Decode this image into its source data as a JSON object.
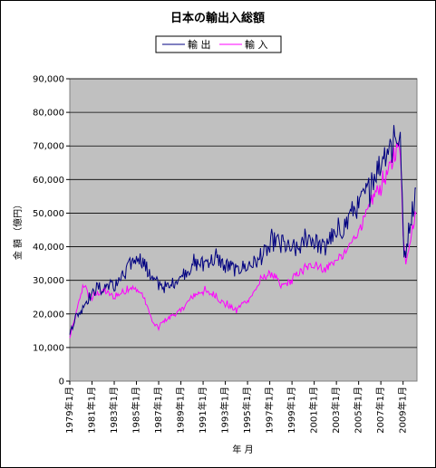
{
  "chart_data": {
    "type": "line",
    "title": "日本の輸出入総額",
    "xlabel": "年 月",
    "ylabel": "金 額 （億円）",
    "ylim": [
      0,
      90000
    ],
    "yticks": [
      "0",
      "10,000",
      "20,000",
      "30,000",
      "40,000",
      "50,000",
      "60,000",
      "70,000",
      "80,000",
      "90,000"
    ],
    "xticks": [
      "1979年1月",
      "1981年1月",
      "1983年1月",
      "1985年1月",
      "1987年1月",
      "1989年1月",
      "1991年1月",
      "1993年1月",
      "1995年1月",
      "1997年1月",
      "1999年1月",
      "2001年1月",
      "2003年1月",
      "2005年1月",
      "2007年1月",
      "2009年1月"
    ],
    "x_start": "1979年1月",
    "x_end": "2010年3月",
    "grid": "horizontal",
    "legend_position": "top-center",
    "plot_background": "#c0c0c0",
    "series": [
      {
        "name": "輸 出",
        "color": "#000080",
        "anchors": [
          [
            1979.0,
            14000
          ],
          [
            1979.5,
            19000
          ],
          [
            1980.0,
            21000
          ],
          [
            1980.5,
            24000
          ],
          [
            1981.0,
            26000
          ],
          [
            1981.5,
            28000
          ],
          [
            1982.0,
            27000
          ],
          [
            1982.5,
            29000
          ],
          [
            1983.0,
            28000
          ],
          [
            1983.5,
            30000
          ],
          [
            1984.0,
            32000
          ],
          [
            1984.5,
            35000
          ],
          [
            1985.0,
            37000
          ],
          [
            1985.5,
            36000
          ],
          [
            1986.0,
            33000
          ],
          [
            1986.5,
            30000
          ],
          [
            1987.0,
            29000
          ],
          [
            1987.5,
            28000
          ],
          [
            1988.0,
            28000
          ],
          [
            1988.5,
            30000
          ],
          [
            1989.0,
            31000
          ],
          [
            1989.5,
            33000
          ],
          [
            1990.0,
            34000
          ],
          [
            1990.5,
            35000
          ],
          [
            1991.0,
            35000
          ],
          [
            1991.5,
            36000
          ],
          [
            1992.0,
            36000
          ],
          [
            1992.5,
            36000
          ],
          [
            1993.0,
            34000
          ],
          [
            1993.5,
            34000
          ],
          [
            1994.0,
            33000
          ],
          [
            1994.5,
            34000
          ],
          [
            1995.0,
            34000
          ],
          [
            1995.5,
            35000
          ],
          [
            1996.0,
            36000
          ],
          [
            1996.5,
            38000
          ],
          [
            1997.0,
            40000
          ],
          [
            1997.5,
            42000
          ],
          [
            1998.0,
            41000
          ],
          [
            1998.5,
            40000
          ],
          [
            1999.0,
            39000
          ],
          [
            1999.5,
            39000
          ],
          [
            2000.0,
            41000
          ],
          [
            2000.5,
            43000
          ],
          [
            2001.0,
            42000
          ],
          [
            2001.5,
            40000
          ],
          [
            2002.0,
            40000
          ],
          [
            2002.5,
            43000
          ],
          [
            2003.0,
            43000
          ],
          [
            2003.5,
            45000
          ],
          [
            2004.0,
            48000
          ],
          [
            2004.5,
            51000
          ],
          [
            2005.0,
            52000
          ],
          [
            2005.5,
            55000
          ],
          [
            2006.0,
            58000
          ],
          [
            2006.5,
            62000
          ],
          [
            2007.0,
            65000
          ],
          [
            2007.5,
            69000
          ],
          [
            2008.0,
            71000
          ],
          [
            2008.5,
            73000
          ],
          [
            2008.8,
            70000
          ],
          [
            2009.0,
            45000
          ],
          [
            2009.1,
            35000
          ],
          [
            2009.3,
            40000
          ],
          [
            2009.6,
            47000
          ],
          [
            2009.9,
            52000
          ],
          [
            2010.17,
            58000
          ]
        ]
      },
      {
        "name": "輸 入",
        "color": "#ff00ff",
        "anchors": [
          [
            1979.0,
            13000
          ],
          [
            1979.5,
            19000
          ],
          [
            1980.0,
            26000
          ],
          [
            1980.3,
            29000
          ],
          [
            1980.6,
            26000
          ],
          [
            1981.0,
            25000
          ],
          [
            1981.5,
            26000
          ],
          [
            1982.0,
            27000
          ],
          [
            1982.5,
            26000
          ],
          [
            1983.0,
            25000
          ],
          [
            1983.5,
            26000
          ],
          [
            1984.0,
            27000
          ],
          [
            1984.5,
            28000
          ],
          [
            1985.0,
            27000
          ],
          [
            1985.5,
            26000
          ],
          [
            1986.0,
            22000
          ],
          [
            1986.5,
            17000
          ],
          [
            1987.0,
            16000
          ],
          [
            1987.5,
            18000
          ],
          [
            1988.0,
            19000
          ],
          [
            1988.5,
            20000
          ],
          [
            1989.0,
            21000
          ],
          [
            1989.5,
            23000
          ],
          [
            1990.0,
            25000
          ],
          [
            1990.5,
            26000
          ],
          [
            1991.0,
            27000
          ],
          [
            1991.5,
            26000
          ],
          [
            1992.0,
            26000
          ],
          [
            1992.5,
            24000
          ],
          [
            1993.0,
            23000
          ],
          [
            1993.5,
            22000
          ],
          [
            1994.0,
            21000
          ],
          [
            1994.5,
            23000
          ],
          [
            1995.0,
            24000
          ],
          [
            1995.5,
            26000
          ],
          [
            1996.0,
            29000
          ],
          [
            1996.5,
            31000
          ],
          [
            1997.0,
            32000
          ],
          [
            1997.5,
            31000
          ],
          [
            1998.0,
            28000
          ],
          [
            1998.5,
            29000
          ],
          [
            1999.0,
            30000
          ],
          [
            1999.5,
            32000
          ],
          [
            2000.0,
            33000
          ],
          [
            2000.5,
            34000
          ],
          [
            2001.0,
            35000
          ],
          [
            2001.5,
            34000
          ],
          [
            2002.0,
            33000
          ],
          [
            2002.5,
            35000
          ],
          [
            2003.0,
            36000
          ],
          [
            2003.5,
            37000
          ],
          [
            2004.0,
            39000
          ],
          [
            2004.5,
            42000
          ],
          [
            2005.0,
            45000
          ],
          [
            2005.5,
            48000
          ],
          [
            2006.0,
            52000
          ],
          [
            2006.5,
            56000
          ],
          [
            2007.0,
            58000
          ],
          [
            2007.5,
            61000
          ],
          [
            2008.0,
            65000
          ],
          [
            2008.5,
            70000
          ],
          [
            2008.8,
            68000
          ],
          [
            2009.0,
            44000
          ],
          [
            2009.2,
            35000
          ],
          [
            2009.5,
            40000
          ],
          [
            2009.8,
            45000
          ],
          [
            2010.17,
            50000
          ]
        ]
      }
    ]
  }
}
